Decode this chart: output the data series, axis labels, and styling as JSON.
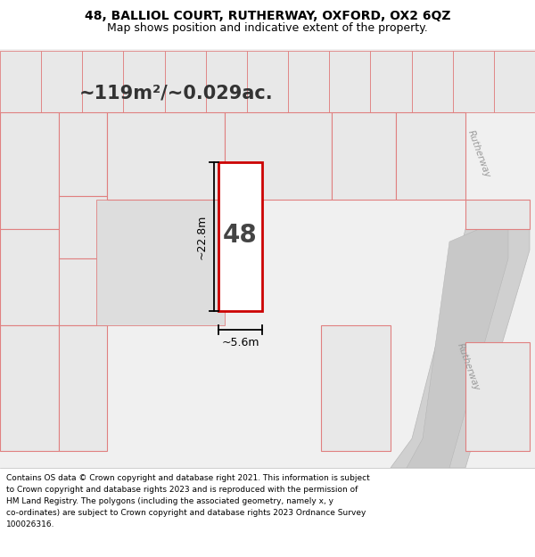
{
  "title_line1": "48, BALLIOL COURT, RUTHERWAY, OXFORD, OX2 6QZ",
  "title_line2": "Map shows position and indicative extent of the property.",
  "area_text": "~119m²/~0.029ac.",
  "label_48": "48",
  "dim_height": "~22.8m",
  "dim_width": "~5.6m",
  "footer_lines": [
    "Contains OS data © Crown copyright and database right 2021. This information is subject",
    "to Crown copyright and database rights 2023 and is reproduced with the permission of",
    "HM Land Registry. The polygons (including the associated geometry, namely x, y",
    "co-ordinates) are subject to Crown copyright and database rights 2023 Ordnance Survey",
    "100026316."
  ],
  "bg_color": "#ffffff",
  "map_bg": "#f0f0f0",
  "poly_fill": "#ffffff",
  "poly_stroke": "#cc0000",
  "neighbor_fill": "#e8e8e8",
  "neighbor_stroke": "#e08080",
  "road_color": "#d8d8d8",
  "road_text_color": "#999999",
  "dim_line_color": "#000000",
  "title_color": "#000000",
  "footer_color": "#000000"
}
